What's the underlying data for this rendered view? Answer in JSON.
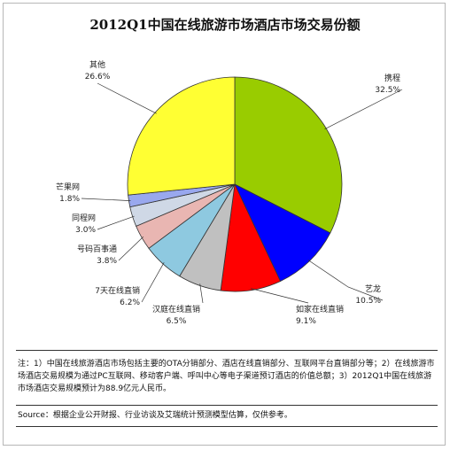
{
  "chart_data": {
    "type": "pie",
    "title": "2012Q1中国在线旅游市场酒店市场交易份额",
    "slices": [
      {
        "label": "携程",
        "value": 32.5,
        "display": "32.5%",
        "color": "#99cc00"
      },
      {
        "label": "艺龙",
        "value": 10.5,
        "display": "10.5%",
        "color": "#0000ff"
      },
      {
        "label": "如家在线直销",
        "value": 9.1,
        "display": "9.1%",
        "color": "#ff0000"
      },
      {
        "label": "汉庭在线直销",
        "value": 6.5,
        "display": "6.5%",
        "color": "#c0c0c0"
      },
      {
        "label": "7天在线直销",
        "value": 6.2,
        "display": "6.2%",
        "color": "#8ec9e0"
      },
      {
        "label": "号码百事通",
        "value": 3.8,
        "display": "3.8%",
        "color": "#e9b6b2"
      },
      {
        "label": "同程网",
        "value": 3.0,
        "display": "3.0%",
        "color": "#cfd8e6"
      },
      {
        "label": "芒果网",
        "value": 1.8,
        "display": "1.8%",
        "color": "#99a8ee"
      },
      {
        "label": "其他",
        "value": 26.6,
        "display": "26.6%",
        "color": "#ffff33"
      }
    ]
  },
  "note": "注：1）中国在线旅游酒店市场包括主要的OTA分销部分、酒店在线直销部分、互联网平台直销部分等；2）在线旅游市场酒店交易规模为通过PC互联网、移动客户端、呼叫中心等电子渠道预订酒店的价值总额；3）2012Q1中国在线旅游市场酒店交易规模预计为88.9亿元人民币。",
  "source": "Source：根据企业公开财报、行业访谈及艾瑞统计预测模型估算，仅供参考。"
}
